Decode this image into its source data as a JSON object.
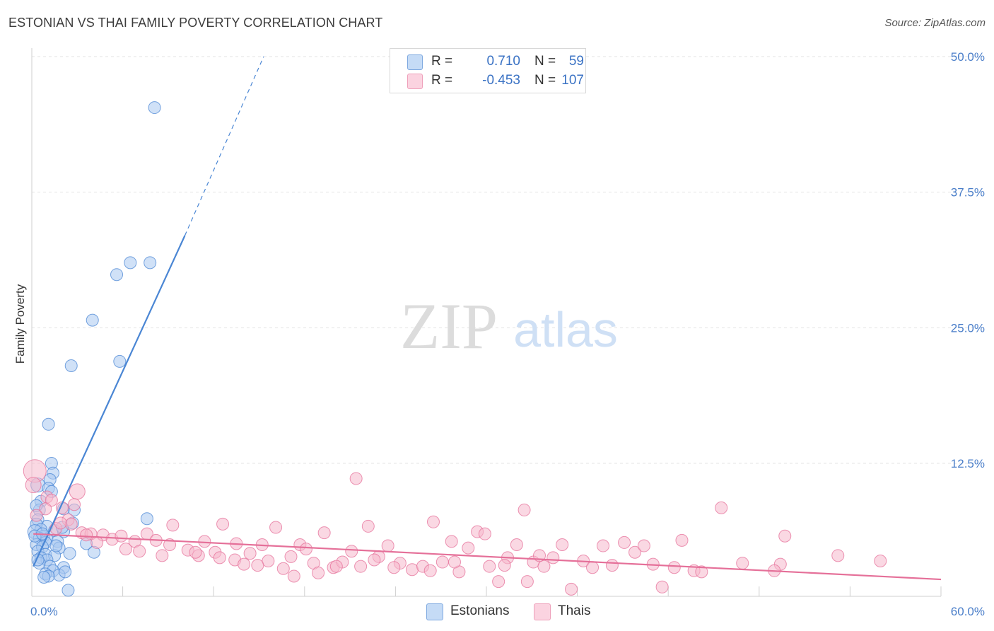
{
  "header": {
    "title": "ESTONIAN VS THAI FAMILY POVERTY CORRELATION CHART",
    "source": "Source: ZipAtlas.com"
  },
  "watermark": {
    "zip": "ZIP",
    "atlas": "atlas"
  },
  "legend": {
    "rows": [
      {
        "r_label": "R =",
        "r_value": "0.710",
        "n_label": "N =",
        "n_value": "59",
        "color": "#a9c8f0"
      },
      {
        "r_label": "R =",
        "r_value": "-0.453",
        "n_label": "N =",
        "n_value": "107",
        "color": "#f6b8cc"
      }
    ]
  },
  "bottom_legend": {
    "items": [
      {
        "label": "Estonians",
        "color": "#a9c8f0"
      },
      {
        "label": "Thais",
        "color": "#f6b8cc"
      }
    ]
  },
  "chart_data": {
    "type": "scatter",
    "title": "ESTONIAN VS THAI FAMILY POVERTY CORRELATION CHART",
    "xlabel": "",
    "ylabel": "Family Poverty",
    "xlim": [
      0,
      60
    ],
    "ylim": [
      0,
      52
    ],
    "x_tick_labels": [
      "0.0%",
      "60.0%"
    ],
    "y_ticks": [
      12.5,
      25.0,
      37.5,
      50.0
    ],
    "y_tick_labels": [
      "12.5%",
      "25.0%",
      "37.5%",
      "50.0%"
    ],
    "grid": true,
    "series": [
      {
        "name": "Estonians",
        "color": "#4a86d4",
        "fill": "#a9c8f0",
        "r": 0.71,
        "n": 59,
        "trendline": {
          "x0": 0.1,
          "y0": 3.0,
          "x1": 10.1,
          "y1": 33.5,
          "dash_to_x": 15.3,
          "dash_to_y": 50.0
        },
        "points": [
          [
            8.1,
            45.3
          ],
          [
            6.5,
            31.0
          ],
          [
            7.8,
            31.0
          ],
          [
            5.6,
            29.9
          ],
          [
            4.0,
            25.7
          ],
          [
            5.8,
            21.9
          ],
          [
            2.6,
            21.5
          ],
          [
            1.1,
            16.1
          ],
          [
            1.3,
            12.5
          ],
          [
            1.4,
            11.6
          ],
          [
            1.2,
            11.0
          ],
          [
            0.4,
            10.5
          ],
          [
            1.1,
            10.2
          ],
          [
            0.6,
            9.0
          ],
          [
            0.5,
            8.2
          ],
          [
            2.1,
            8.3
          ],
          [
            2.8,
            8.2
          ],
          [
            7.6,
            7.4
          ],
          [
            0.4,
            7.3
          ],
          [
            1.0,
            6.7
          ],
          [
            0.3,
            6.9
          ],
          [
            0.6,
            6.4
          ],
          [
            0.2,
            6.2
          ],
          [
            1.5,
            6.3
          ],
          [
            2.1,
            6.2
          ],
          [
            2.7,
            7.0
          ],
          [
            0.8,
            5.8
          ],
          [
            0.5,
            5.6
          ],
          [
            1.0,
            5.5
          ],
          [
            0.9,
            5.2
          ],
          [
            1.7,
            5.3
          ],
          [
            0.3,
            5.0
          ],
          [
            0.7,
            4.8
          ],
          [
            1.8,
            4.7
          ],
          [
            3.6,
            5.1
          ],
          [
            0.4,
            4.4
          ],
          [
            0.9,
            4.1
          ],
          [
            1.5,
            4.0
          ],
          [
            2.5,
            4.2
          ],
          [
            4.1,
            4.3
          ],
          [
            0.6,
            3.8
          ],
          [
            1.0,
            3.6
          ],
          [
            0.5,
            3.3
          ],
          [
            1.2,
            3.0
          ],
          [
            2.1,
            2.9
          ],
          [
            1.4,
            2.6
          ],
          [
            0.9,
            2.3
          ],
          [
            1.8,
            2.2
          ],
          [
            2.2,
            2.5
          ],
          [
            1.1,
            2.1
          ],
          [
            0.8,
            2.0
          ],
          [
            2.4,
            0.8
          ],
          [
            0.2,
            5.8
          ],
          [
            0.3,
            8.6
          ],
          [
            1.3,
            9.9
          ],
          [
            0.7,
            6.0
          ],
          [
            1.6,
            4.9
          ],
          [
            2.0,
            6.6
          ],
          [
            0.4,
            3.6
          ]
        ]
      },
      {
        "name": "Thais",
        "color": "#e57099",
        "fill": "#f6b8cc",
        "r": -0.453,
        "n": 107,
        "trendline": {
          "x0": 0.1,
          "y0": 6.0,
          "x1": 60.0,
          "y1": 1.8
        },
        "points": [
          [
            0.2,
            11.8
          ],
          [
            0.1,
            10.5
          ],
          [
            1.0,
            9.4
          ],
          [
            3.0,
            9.9
          ],
          [
            1.3,
            9.1
          ],
          [
            2.0,
            8.4
          ],
          [
            2.4,
            7.3
          ],
          [
            2.6,
            6.9
          ],
          [
            3.3,
            6.1
          ],
          [
            3.9,
            6.0
          ],
          [
            4.7,
            5.9
          ],
          [
            5.3,
            5.5
          ],
          [
            5.9,
            5.8
          ],
          [
            6.8,
            5.3
          ],
          [
            7.6,
            6.0
          ],
          [
            8.2,
            5.4
          ],
          [
            9.3,
            6.8
          ],
          [
            9.1,
            5.0
          ],
          [
            10.3,
            4.5
          ],
          [
            11.0,
            4.0
          ],
          [
            11.4,
            5.3
          ],
          [
            12.6,
            6.9
          ],
          [
            12.1,
            4.3
          ],
          [
            13.4,
            3.6
          ],
          [
            14.0,
            3.2
          ],
          [
            14.4,
            4.2
          ],
          [
            15.2,
            5.0
          ],
          [
            15.6,
            3.5
          ],
          [
            16.1,
            6.6
          ],
          [
            16.6,
            2.8
          ],
          [
            17.1,
            3.9
          ],
          [
            17.7,
            5.0
          ],
          [
            18.1,
            4.6
          ],
          [
            18.6,
            3.3
          ],
          [
            19.3,
            6.1
          ],
          [
            19.9,
            2.9
          ],
          [
            20.5,
            3.4
          ],
          [
            21.1,
            4.4
          ],
          [
            21.7,
            3.0
          ],
          [
            22.2,
            6.7
          ],
          [
            22.9,
            3.9
          ],
          [
            23.5,
            4.9
          ],
          [
            24.3,
            3.3
          ],
          [
            25.1,
            2.7
          ],
          [
            25.8,
            3.0
          ],
          [
            26.5,
            7.1
          ],
          [
            27.1,
            3.4
          ],
          [
            27.7,
            5.3
          ],
          [
            28.2,
            2.5
          ],
          [
            28.8,
            4.7
          ],
          [
            29.4,
            6.2
          ],
          [
            30.2,
            3.0
          ],
          [
            30.8,
            1.6
          ],
          [
            31.4,
            3.8
          ],
          [
            32.0,
            5.0
          ],
          [
            32.7,
            1.6
          ],
          [
            33.1,
            3.4
          ],
          [
            33.8,
            3.0
          ],
          [
            34.4,
            3.8
          ],
          [
            35.0,
            5.0
          ],
          [
            35.6,
            0.9
          ],
          [
            36.4,
            3.5
          ],
          [
            37.0,
            2.9
          ],
          [
            37.7,
            4.9
          ],
          [
            38.3,
            3.1
          ],
          [
            39.1,
            5.2
          ],
          [
            39.8,
            4.3
          ],
          [
            40.4,
            4.9
          ],
          [
            41.0,
            3.2
          ],
          [
            41.6,
            1.1
          ],
          [
            42.4,
            2.9
          ],
          [
            42.9,
            5.4
          ],
          [
            43.7,
            2.6
          ],
          [
            44.2,
            2.5
          ],
          [
            21.4,
            11.1
          ],
          [
            13.5,
            5.1
          ],
          [
            7.1,
            4.4
          ],
          [
            6.2,
            4.6
          ],
          [
            4.3,
            5.2
          ],
          [
            3.6,
            5.9
          ],
          [
            8.6,
            4.0
          ],
          [
            10.8,
            4.3
          ],
          [
            12.4,
            3.8
          ],
          [
            14.9,
            3.1
          ],
          [
            17.3,
            2.1
          ],
          [
            18.9,
            2.4
          ],
          [
            20.1,
            3.0
          ],
          [
            22.6,
            3.6
          ],
          [
            23.9,
            2.9
          ],
          [
            26.3,
            2.6
          ],
          [
            27.9,
            3.4
          ],
          [
            29.9,
            6.0
          ],
          [
            31.2,
            3.1
          ],
          [
            32.5,
            8.2
          ],
          [
            33.5,
            4.0
          ],
          [
            45.5,
            8.4
          ],
          [
            46.9,
            3.3
          ],
          [
            49.7,
            5.8
          ],
          [
            49.4,
            3.2
          ],
          [
            53.2,
            4.0
          ],
          [
            56.0,
            3.5
          ],
          [
            49.0,
            2.6
          ],
          [
            2.8,
            8.7
          ],
          [
            1.6,
            6.5
          ],
          [
            0.9,
            8.3
          ],
          [
            0.3,
            7.7
          ],
          [
            1.9,
            7.0
          ]
        ]
      }
    ]
  }
}
